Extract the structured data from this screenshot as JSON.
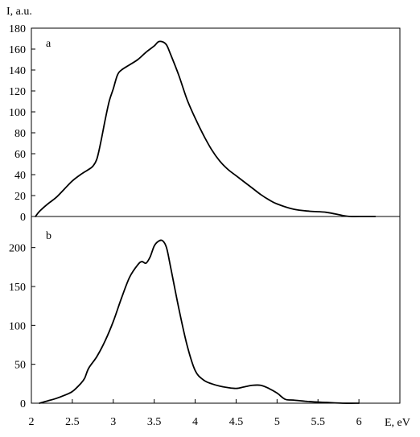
{
  "chart_data": [
    {
      "type": "line",
      "panel_label": "a",
      "ylabel": "I, a.u.",
      "xlim": [
        2,
        6.5
      ],
      "ylim": [
        0,
        180
      ],
      "y_ticks": [
        "0",
        "20",
        "40",
        "60",
        "80",
        "100",
        "120",
        "140",
        "160",
        "180"
      ],
      "grid": false,
      "x": [
        2.05,
        2.1,
        2.2,
        2.3,
        2.4,
        2.5,
        2.6,
        2.7,
        2.75,
        2.8,
        2.85,
        2.9,
        2.95,
        3.0,
        3.05,
        3.1,
        3.2,
        3.3,
        3.4,
        3.5,
        3.55,
        3.6,
        3.65,
        3.7,
        3.8,
        3.9,
        4.0,
        4.1,
        4.2,
        4.3,
        4.4,
        4.5,
        4.6,
        4.7,
        4.8,
        4.9,
        5.0,
        5.2,
        5.4,
        5.6,
        5.8,
        5.9,
        6.0,
        6.2
      ],
      "y": [
        0,
        5,
        12,
        18,
        26,
        34,
        40,
        45,
        48,
        55,
        72,
        92,
        110,
        122,
        135,
        140,
        145,
        150,
        157,
        163,
        167,
        167,
        164,
        155,
        135,
        112,
        94,
        78,
        64,
        53,
        45,
        39,
        33,
        27,
        21,
        16,
        12,
        7,
        5,
        4,
        1,
        0,
        0,
        0
      ]
    },
    {
      "type": "line",
      "panel_label": "b",
      "xlabel": "E, eV",
      "xlim": [
        2,
        6.5
      ],
      "ylim": [
        0,
        240
      ],
      "x_ticks": [
        "2",
        "2.5",
        "3",
        "3.5",
        "4",
        "4.5",
        "5",
        "5.5",
        "6"
      ],
      "y_ticks": [
        "0",
        "50",
        "100",
        "150",
        "200"
      ],
      "grid": false,
      "x": [
        2.1,
        2.2,
        2.3,
        2.4,
        2.5,
        2.6,
        2.65,
        2.7,
        2.8,
        2.9,
        3.0,
        3.1,
        3.2,
        3.3,
        3.35,
        3.4,
        3.45,
        3.5,
        3.55,
        3.6,
        3.65,
        3.7,
        3.8,
        3.9,
        4.0,
        4.1,
        4.2,
        4.3,
        4.4,
        4.5,
        4.6,
        4.7,
        4.8,
        4.9,
        5.0,
        5.1,
        5.2,
        5.4,
        5.6,
        5.8,
        6.0
      ],
      "y": [
        0,
        3,
        6,
        10,
        15,
        25,
        32,
        45,
        60,
        80,
        105,
        135,
        162,
        178,
        182,
        180,
        188,
        202,
        208,
        209,
        200,
        175,
        122,
        75,
        42,
        30,
        25,
        22,
        20,
        19,
        21,
        23,
        23,
        19,
        13,
        5,
        4,
        2,
        1,
        0,
        0
      ]
    }
  ]
}
